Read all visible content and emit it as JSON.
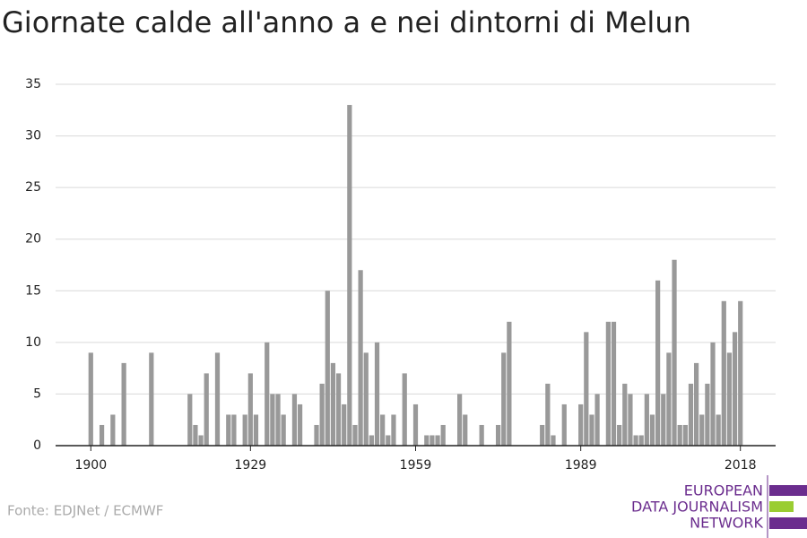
{
  "chart_data": {
    "type": "bar",
    "title": "Giornate calde all'anno a e nei dintorni di Melun",
    "source": "Fonte: EDJNet / ECMWF",
    "logo": [
      "EUROPEAN",
      "DATA JOURNALISM",
      "NETWORK"
    ],
    "color": "#999999",
    "x": [
      1900,
      1902,
      1904,
      1906,
      1911,
      1918,
      1919,
      1920,
      1921,
      1923,
      1925,
      1926,
      1928,
      1929,
      1930,
      1932,
      1933,
      1934,
      1935,
      1937,
      1938,
      1941,
      1942,
      1943,
      1944,
      1945,
      1946,
      1947,
      1948,
      1949,
      1950,
      1951,
      1952,
      1953,
      1954,
      1955,
      1957,
      1959,
      1961,
      1962,
      1963,
      1964,
      1967,
      1968,
      1971,
      1974,
      1975,
      1976,
      1982,
      1983,
      1984,
      1986,
      1989,
      1990,
      1991,
      1992,
      1994,
      1995,
      1996,
      1997,
      1998,
      1999,
      2000,
      2001,
      2002,
      2003,
      2004,
      2005,
      2006,
      2007,
      2008,
      2009,
      2010,
      2011,
      2012,
      2013,
      2014,
      2015,
      2016,
      2017,
      2018
    ],
    "values": [
      9,
      2,
      3,
      8,
      9,
      5,
      2,
      1,
      7,
      9,
      3,
      3,
      3,
      7,
      3,
      10,
      5,
      5,
      3,
      5,
      4,
      2,
      6,
      15,
      8,
      7,
      4,
      33,
      2,
      17,
      9,
      1,
      10,
      3,
      1,
      3,
      7,
      4,
      1,
      1,
      1,
      2,
      5,
      3,
      2,
      2,
      9,
      12,
      2,
      6,
      1,
      4,
      4,
      11,
      3,
      5,
      12,
      12,
      2,
      6,
      5,
      1,
      1,
      5,
      3,
      16,
      5,
      9,
      18,
      2,
      2,
      6,
      8,
      3,
      6,
      10,
      3,
      14,
      9,
      11,
      14
    ],
    "xlim": [
      1893.6,
      2024.4
    ],
    "xticks": [
      1900,
      1929,
      1959,
      1989,
      2018
    ],
    "ylim": [
      0,
      35
    ],
    "yticks": [
      0,
      5,
      10,
      15,
      20,
      25,
      30,
      35
    ],
    "grid": true
  }
}
